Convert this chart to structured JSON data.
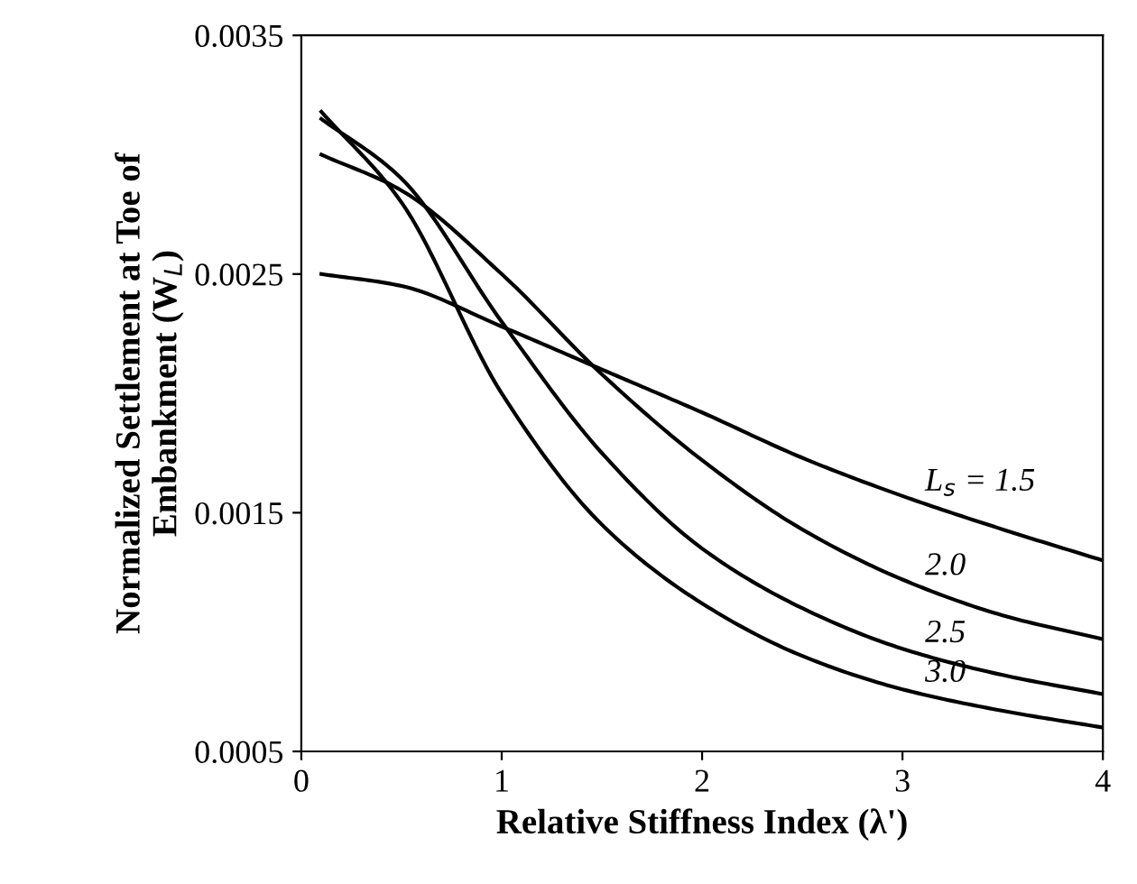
{
  "chart_data": {
    "type": "line",
    "xlabel": "Relative Stiffness Index (λ')",
    "ylabel": "Normalized Settlement at Toe of\nEmbankment (W$_{L}$)",
    "xlim": [
      0,
      4
    ],
    "xticks": [
      0,
      1,
      2,
      3,
      4
    ],
    "ylim": [
      0.0005,
      0.0035
    ],
    "yticks": [
      0.0005,
      0.0015,
      0.0025,
      0.0035
    ],
    "grid": false,
    "legend": false,
    "marker": "none",
    "line_style": "solid",
    "series": [
      {
        "name": "L$_{s}$ = 1.5",
        "color": "#000000",
        "x": [
          0.1,
          0.5,
          1.0,
          1.5,
          2.0,
          2.5,
          3.0,
          3.5,
          4.0
        ],
        "values": [
          0.0025,
          0.00245,
          0.00228,
          0.0021,
          0.00192,
          0.00173,
          0.00157,
          0.00143,
          0.0013
        ]
      },
      {
        "name": "2.0",
        "color": "#000000",
        "x": [
          0.1,
          0.5,
          1.0,
          1.5,
          2.0,
          2.5,
          3.0,
          3.5,
          4.0
        ],
        "values": [
          0.003,
          0.00285,
          0.0025,
          0.00208,
          0.00172,
          0.00143,
          0.00122,
          0.00107,
          0.00097
        ]
      },
      {
        "name": "2.5",
        "color": "#000000",
        "x": [
          0.1,
          0.5,
          1.0,
          1.5,
          2.0,
          2.5,
          3.0,
          3.5,
          4.0
        ],
        "values": [
          0.00315,
          0.0029,
          0.0023,
          0.00175,
          0.00135,
          0.0011,
          0.00093,
          0.00082,
          0.00074
        ]
      },
      {
        "name": "3.0",
        "color": "#000000",
        "x": [
          0.1,
          0.5,
          1.0,
          1.5,
          2.0,
          2.5,
          3.0,
          3.5,
          4.0
        ],
        "values": [
          0.00318,
          0.0028,
          0.002,
          0.00145,
          0.00112,
          0.0009,
          0.00076,
          0.00067,
          0.0006
        ]
      }
    ]
  }
}
